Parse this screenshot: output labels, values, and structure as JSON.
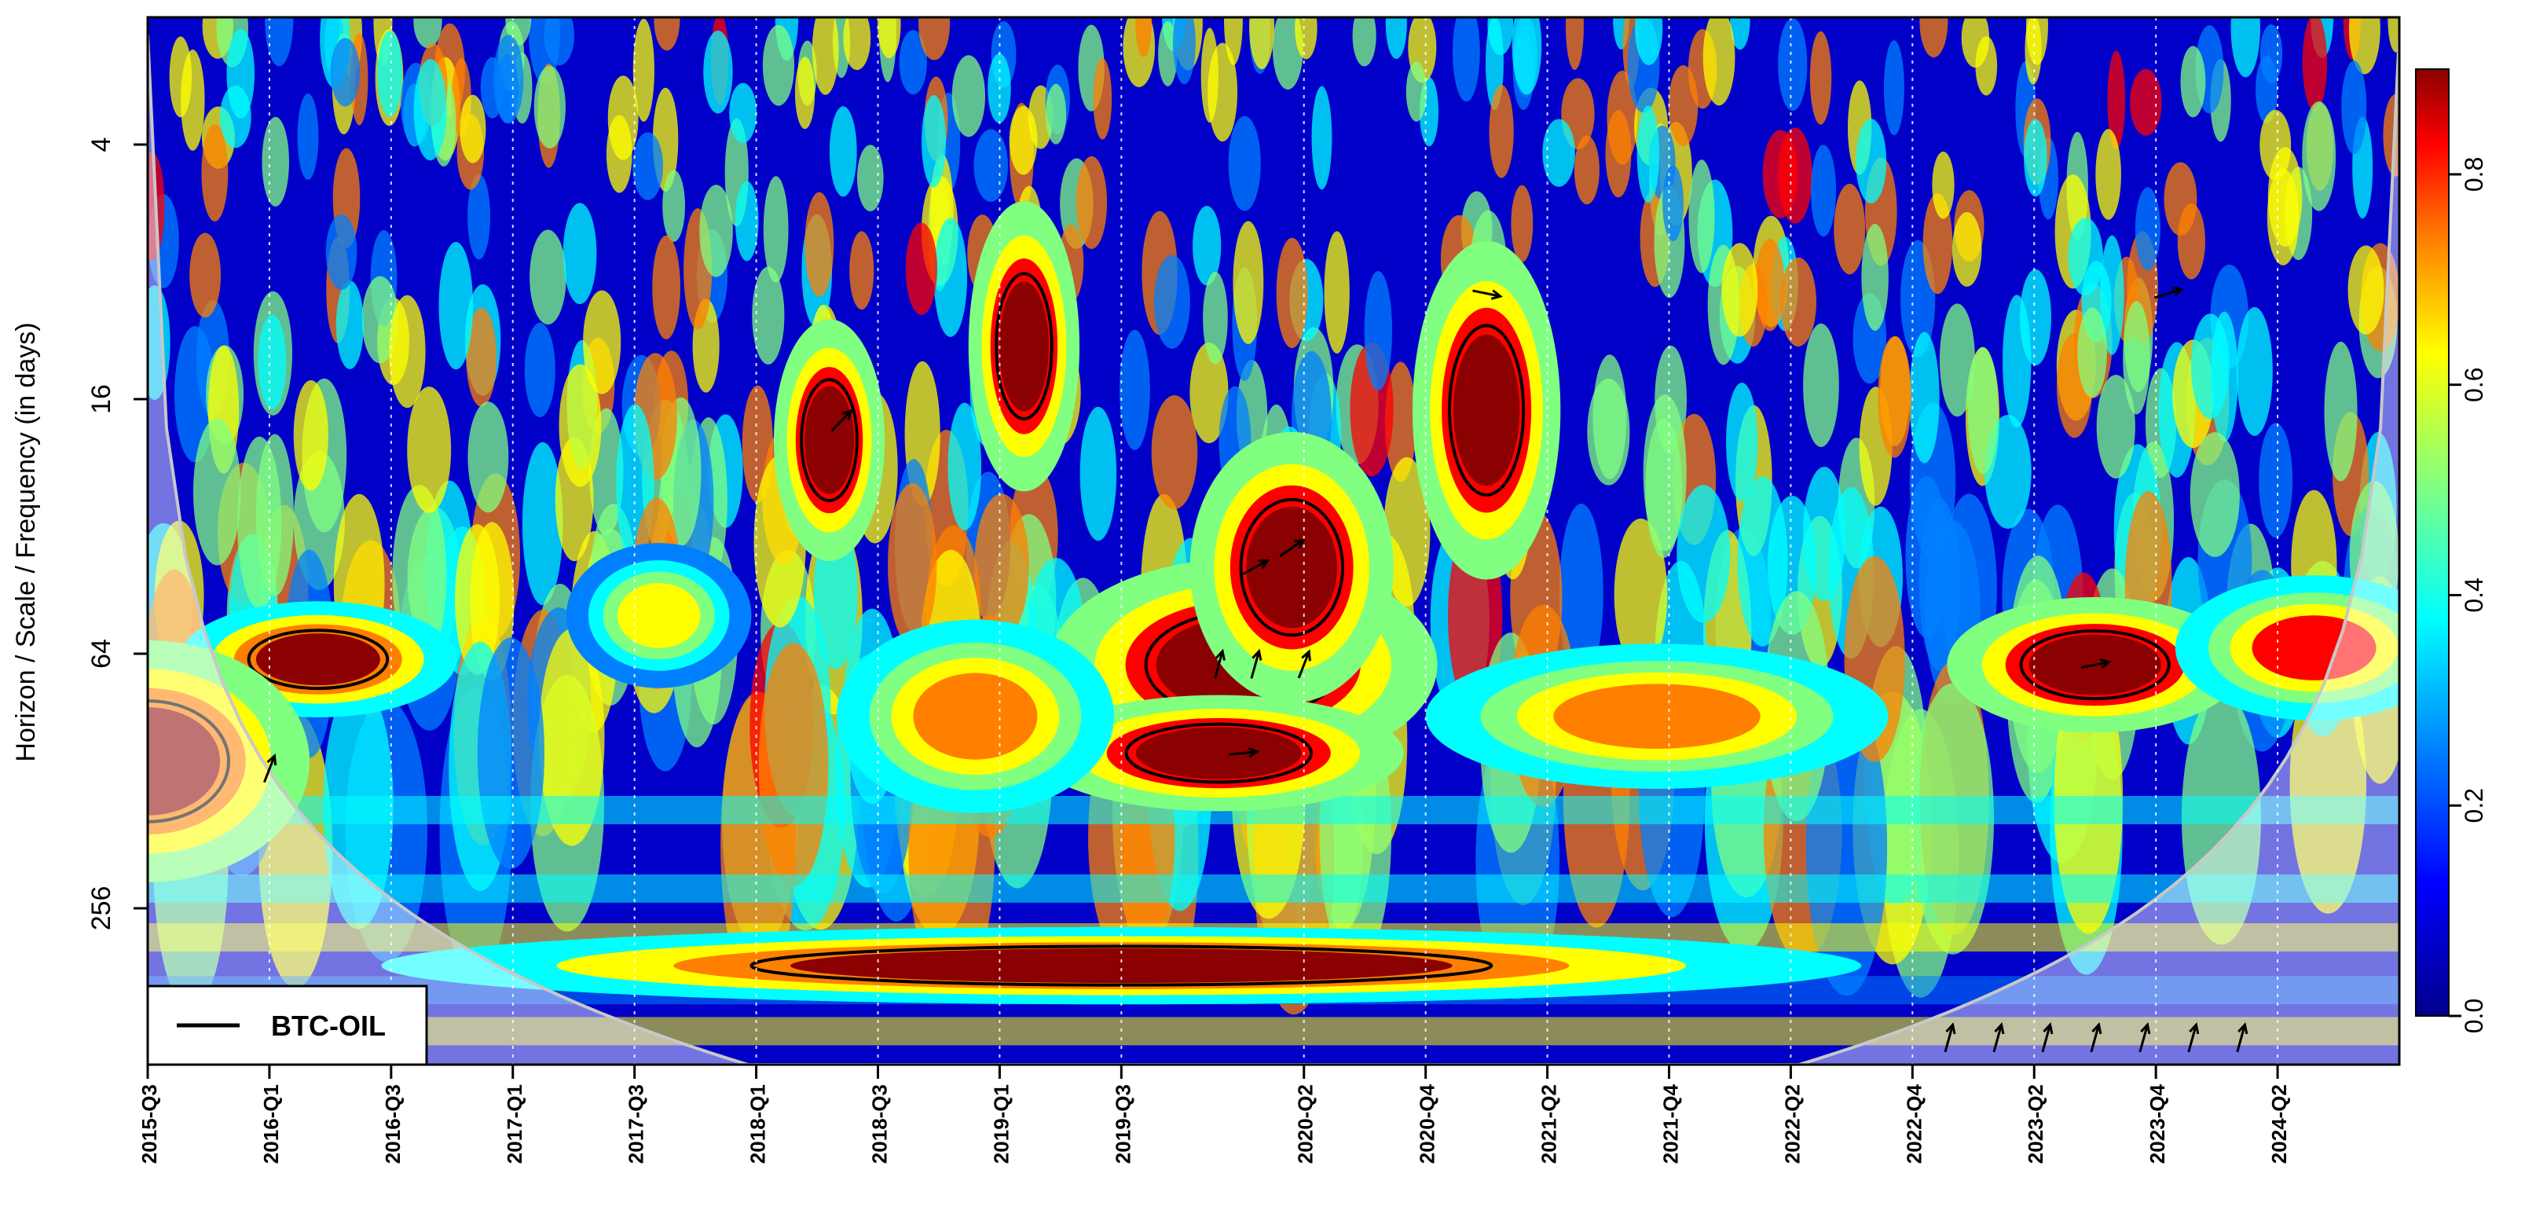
{
  "chart_data": {
    "type": "heatmap",
    "title": "",
    "xlabel": "",
    "ylabel": "Horizon / Scale / Frequency (in days)",
    "x_ticks": [
      "2015-Q3",
      "2016-Q1",
      "2016-Q3",
      "2017-Q1",
      "2017-Q3",
      "2018-Q1",
      "2018-Q3",
      "2019-Q1",
      "2019-Q3",
      "2020-Q2",
      "2020-Q4",
      "2021-Q2",
      "2021-Q4",
      "2022-Q2",
      "2022-Q4",
      "2023-Q2",
      "2023-Q4",
      "2024-Q2"
    ],
    "y_ticks": [
      4,
      16,
      64,
      256
    ],
    "y_scale": "log2",
    "y_range": [
      2,
      600
    ],
    "colorbar": {
      "min": 0.0,
      "max": 0.9,
      "ticks": [
        "0.0",
        "0.2",
        "0.4",
        "0.6",
        "0.8"
      ]
    },
    "legend": {
      "label": "BTC-OIL",
      "placement": "bottom-left"
    },
    "colors": [
      "#00008b",
      "#0000ff",
      "#0080ff",
      "#00ffff",
      "#80ff80",
      "#ffff00",
      "#ff8000",
      "#ff0000",
      "#8b0000"
    ],
    "regions": [
      {
        "t": 2020.0,
        "scale": 68,
        "dt": 0.42,
        "ds": 0.22,
        "power": 0.95
      },
      {
        "t": 2019.9,
        "scale": 110,
        "dt": 0.4,
        "ds": 0.12,
        "power": 0.93
      },
      {
        "t": 2020.2,
        "scale": 40,
        "dt": 0.22,
        "ds": 0.28,
        "power": 0.9
      },
      {
        "t": 2023.5,
        "scale": 68,
        "dt": 0.32,
        "ds": 0.14,
        "power": 0.9
      },
      {
        "t": 2016.2,
        "scale": 66,
        "dt": 0.3,
        "ds": 0.12,
        "power": 0.85
      },
      {
        "t": 2015.5,
        "scale": 115,
        "dt": 0.35,
        "ds": 0.25,
        "power": 0.88
      },
      {
        "t": 2019.5,
        "scale": 350,
        "dt": 1.6,
        "ds": 0.08,
        "power": 0.85
      },
      {
        "t": 2018.9,
        "scale": 90,
        "dt": 0.3,
        "ds": 0.2,
        "power": 0.7
      },
      {
        "t": 2021.7,
        "scale": 90,
        "dt": 0.5,
        "ds": 0.15,
        "power": 0.65
      },
      {
        "t": 2021.0,
        "scale": 17,
        "dt": 0.16,
        "ds": 0.35,
        "power": 0.9
      },
      {
        "t": 2019.1,
        "scale": 12,
        "dt": 0.12,
        "ds": 0.3,
        "power": 0.9
      },
      {
        "t": 2018.3,
        "scale": 20,
        "dt": 0.12,
        "ds": 0.25,
        "power": 0.9
      },
      {
        "t": 2017.6,
        "scale": 52,
        "dt": 0.2,
        "ds": 0.15,
        "power": 0.6
      },
      {
        "t": 2024.4,
        "scale": 62,
        "dt": 0.3,
        "ds": 0.15,
        "power": 0.75
      }
    ]
  }
}
